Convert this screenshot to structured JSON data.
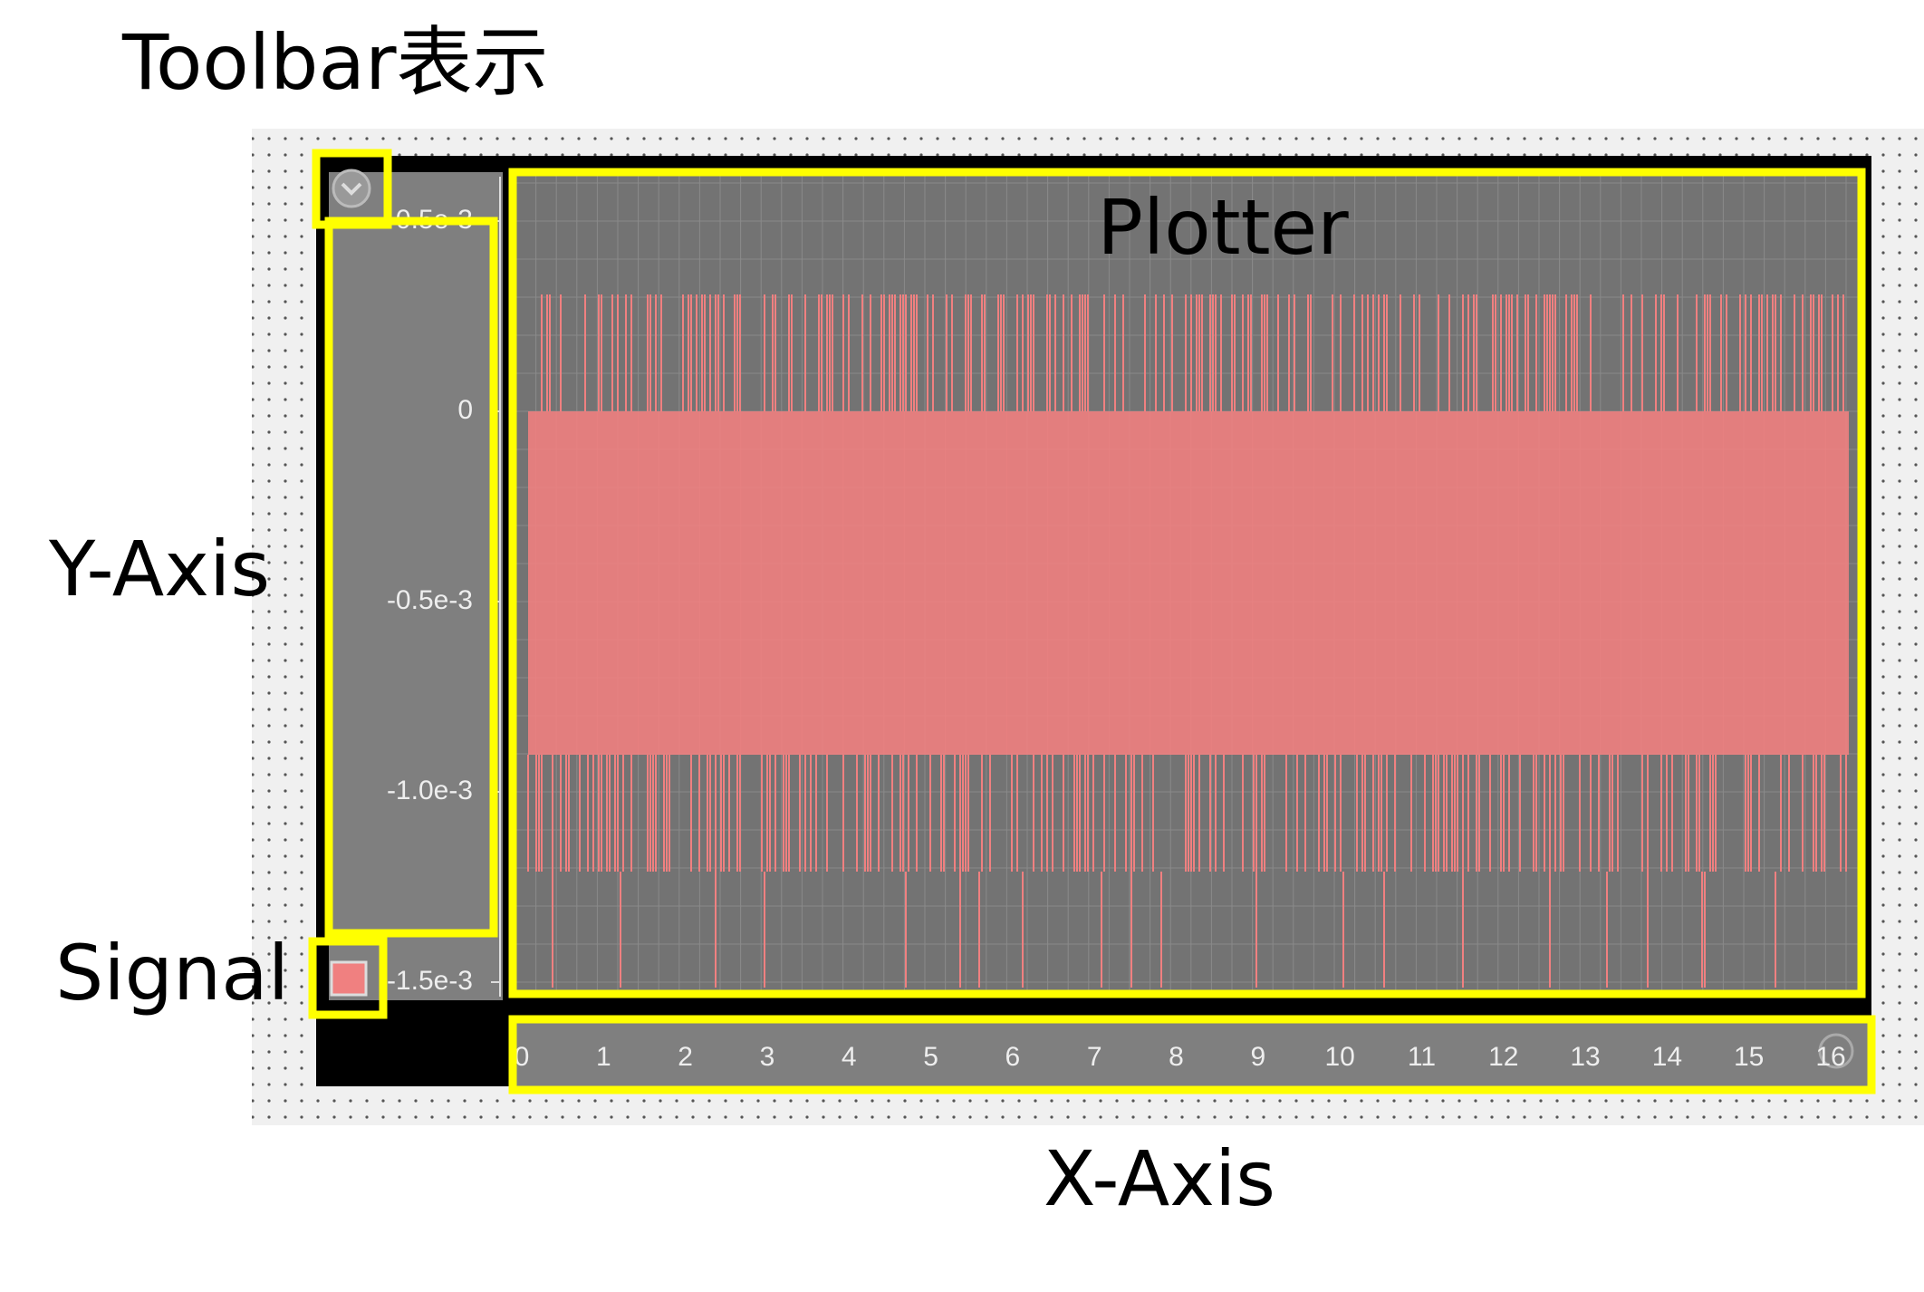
{
  "annotations": {
    "toolbar": "Toolbar表示",
    "plotter": "Plotter",
    "y_axis": "Y-Axis",
    "signal": "Signal",
    "x_axis": "X-Axis"
  },
  "plot": {
    "y_tick_labels": [
      "0.5e-3",
      "0",
      "-0.5e-3",
      "-1.0e-3",
      "-1.5e-3"
    ],
    "x_tick_labels": [
      "0",
      "1",
      "2",
      "3",
      "4",
      "5",
      "6",
      "7",
      "8",
      "9",
      "10",
      "11",
      "12",
      "13",
      "14",
      "15",
      "16"
    ]
  }
}
